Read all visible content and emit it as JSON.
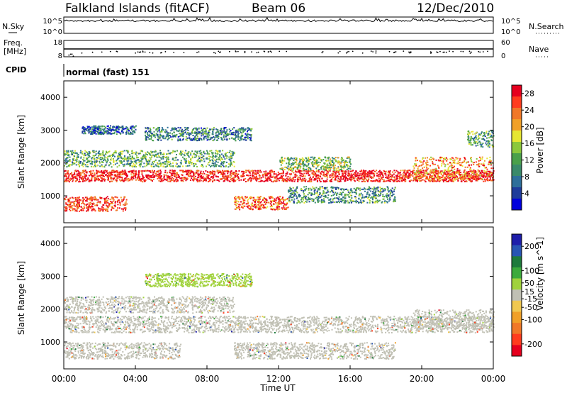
{
  "header": {
    "station": "Falkland Islands (fitACF)",
    "beam": "Beam 06",
    "date": "12/Dec/2010"
  },
  "strips": {
    "nsky_label": "N.Sky",
    "nsearch_label": "N.Search",
    "nsky_ticks": [
      "10^5",
      "10^0"
    ],
    "nsearch_ticks": [
      "10^5",
      "10^0"
    ],
    "freq_label_1": "Freq.",
    "freq_label_2": "[MHz]",
    "freq_ticks": [
      "18",
      "8"
    ],
    "nave_label": "Nave",
    "nave_ticks": [
      "60",
      "0"
    ],
    "cpid_label": "CPID",
    "cpid_text": "normal (fast) 151"
  },
  "colors": {
    "power": [
      "#0000dc",
      "#1e3c9b",
      "#2e6f9a",
      "#3a8a6a",
      "#4aa04a",
      "#8cc83c",
      "#e6e632",
      "#f0a028",
      "#f07828",
      "#ff3c1e",
      "#e6001e"
    ],
    "velocity": [
      "#1e1eaa",
      "#2855b4",
      "#1e7a3c",
      "#3caa3c",
      "#a0d23c",
      "#c0c0b4",
      "#f0c850",
      "#f0a028",
      "#f07828",
      "#ff3c1e",
      "#e6001e"
    ]
  },
  "chart_data": [
    {
      "type": "heatmap",
      "quantity": "Power",
      "ylabel": "Slant Range [km]",
      "xlabel": "Time UT",
      "x_ticks": [
        "00:00",
        "04:00",
        "08:00",
        "12:00",
        "16:00",
        "20:00",
        "00:00"
      ],
      "x_range_hours": [
        0,
        24
      ],
      "y_ticks": [
        1000,
        2000,
        3000,
        4000
      ],
      "ylim": [
        180,
        4500
      ],
      "colorbar": {
        "label": "Power [dB]",
        "ticks": [
          4,
          8,
          12,
          16,
          20,
          24,
          28
        ],
        "range": [
          0,
          30
        ]
      },
      "scatter_bands": [
        {
          "t": [
            0.0,
            24.0
          ],
          "range": [
            1450,
            1800
          ],
          "value": 28
        },
        {
          "t": [
            0.0,
            3.5
          ],
          "range": [
            550,
            1000
          ],
          "value": 26
        },
        {
          "t": [
            0.0,
            9.5
          ],
          "range": [
            1900,
            2400
          ],
          "value": 12
        },
        {
          "t": [
            1.0,
            4.0
          ],
          "range": [
            2900,
            3150
          ],
          "value": 6
        },
        {
          "t": [
            4.5,
            10.5
          ],
          "range": [
            2700,
            3100
          ],
          "value": 9
        },
        {
          "t": [
            9.5,
            12.5
          ],
          "range": [
            600,
            1000
          ],
          "value": 24
        },
        {
          "t": [
            12.5,
            18.5
          ],
          "range": [
            800,
            1300
          ],
          "value": 10
        },
        {
          "t": [
            12.0,
            16.0
          ],
          "range": [
            1800,
            2200
          ],
          "value": 14
        },
        {
          "t": [
            19.5,
            24.0
          ],
          "range": [
            1500,
            2200
          ],
          "value": 22
        },
        {
          "t": [
            22.5,
            24.0
          ],
          "range": [
            2500,
            3000
          ],
          "value": 12
        }
      ]
    },
    {
      "type": "heatmap",
      "quantity": "Velocity",
      "ylabel": "Slant Range [km]",
      "xlabel": "Time UT",
      "x_ticks": [
        "00:00",
        "04:00",
        "08:00",
        "12:00",
        "16:00",
        "20:00",
        "00:00"
      ],
      "x_range_hours": [
        0,
        24
      ],
      "y_ticks": [
        1000,
        2000,
        3000,
        4000
      ],
      "ylim": [
        180,
        4500
      ],
      "colorbar": {
        "label": "Velocity [m s^-1]",
        "ticks": [
          200,
          100,
          50,
          15,
          -15,
          -50,
          -100,
          -200
        ],
        "range": [
          -250,
          250
        ]
      },
      "scatter_bands": [
        {
          "t": [
            0.0,
            24.0
          ],
          "range": [
            1300,
            1800
          ],
          "value": 0
        },
        {
          "t": [
            0.0,
            6.5
          ],
          "range": [
            500,
            1000
          ],
          "value": 0
        },
        {
          "t": [
            9.5,
            18.5
          ],
          "range": [
            500,
            1000
          ],
          "value": 0
        },
        {
          "t": [
            0.0,
            9.5
          ],
          "range": [
            1900,
            2400
          ],
          "value": 0
        },
        {
          "t": [
            4.5,
            10.5
          ],
          "range": [
            2700,
            3100
          ],
          "value": 40
        },
        {
          "t": [
            19.5,
            24.0
          ],
          "range": [
            1400,
            2000
          ],
          "value": 0
        }
      ]
    }
  ]
}
